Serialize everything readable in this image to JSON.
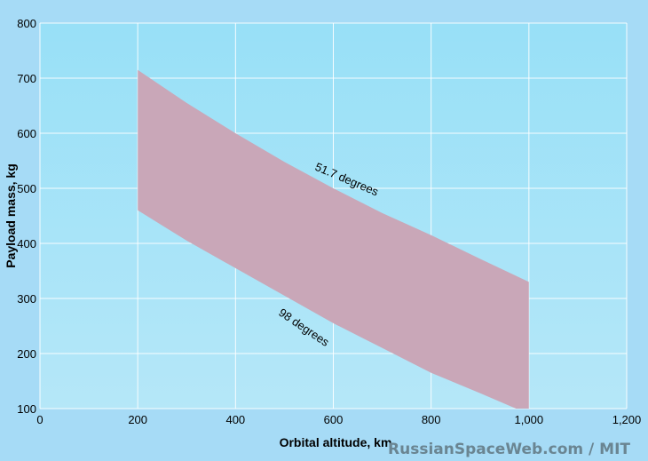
{
  "chart_data": {
    "type": "area",
    "title": "",
    "xlabel": "Orbital altitude, km",
    "ylabel": "Payload mass, kg",
    "xlim": [
      0,
      1200
    ],
    "ylim": [
      100,
      800
    ],
    "xticks": [
      "0",
      "200",
      "400",
      "600",
      "800",
      "1,000",
      "1,200"
    ],
    "yticks": [
      "100",
      "200",
      "300",
      "400",
      "500",
      "600",
      "700",
      "800"
    ],
    "grid": true,
    "legend": "none",
    "series": [
      {
        "name": "51.7 degrees",
        "x": [
          200,
          300,
          400,
          500,
          600,
          700,
          800,
          900,
          1000
        ],
        "y": [
          715,
          655,
          600,
          548,
          500,
          455,
          415,
          372,
          330
        ]
      },
      {
        "name": "98 degrees",
        "x": [
          200,
          300,
          400,
          500,
          600,
          700,
          800,
          900,
          1000
        ],
        "y": [
          460,
          405,
          355,
          305,
          255,
          210,
          165,
          128,
          90
        ]
      }
    ],
    "colors": {
      "band": "#c9a7b8",
      "plot_bg_top": "#98e0f7",
      "plot_bg_bottom": "#b5e7f8",
      "page_bg": "#a6dbf6"
    }
  },
  "credit": "RussianSpaceWeb.com / MIT"
}
